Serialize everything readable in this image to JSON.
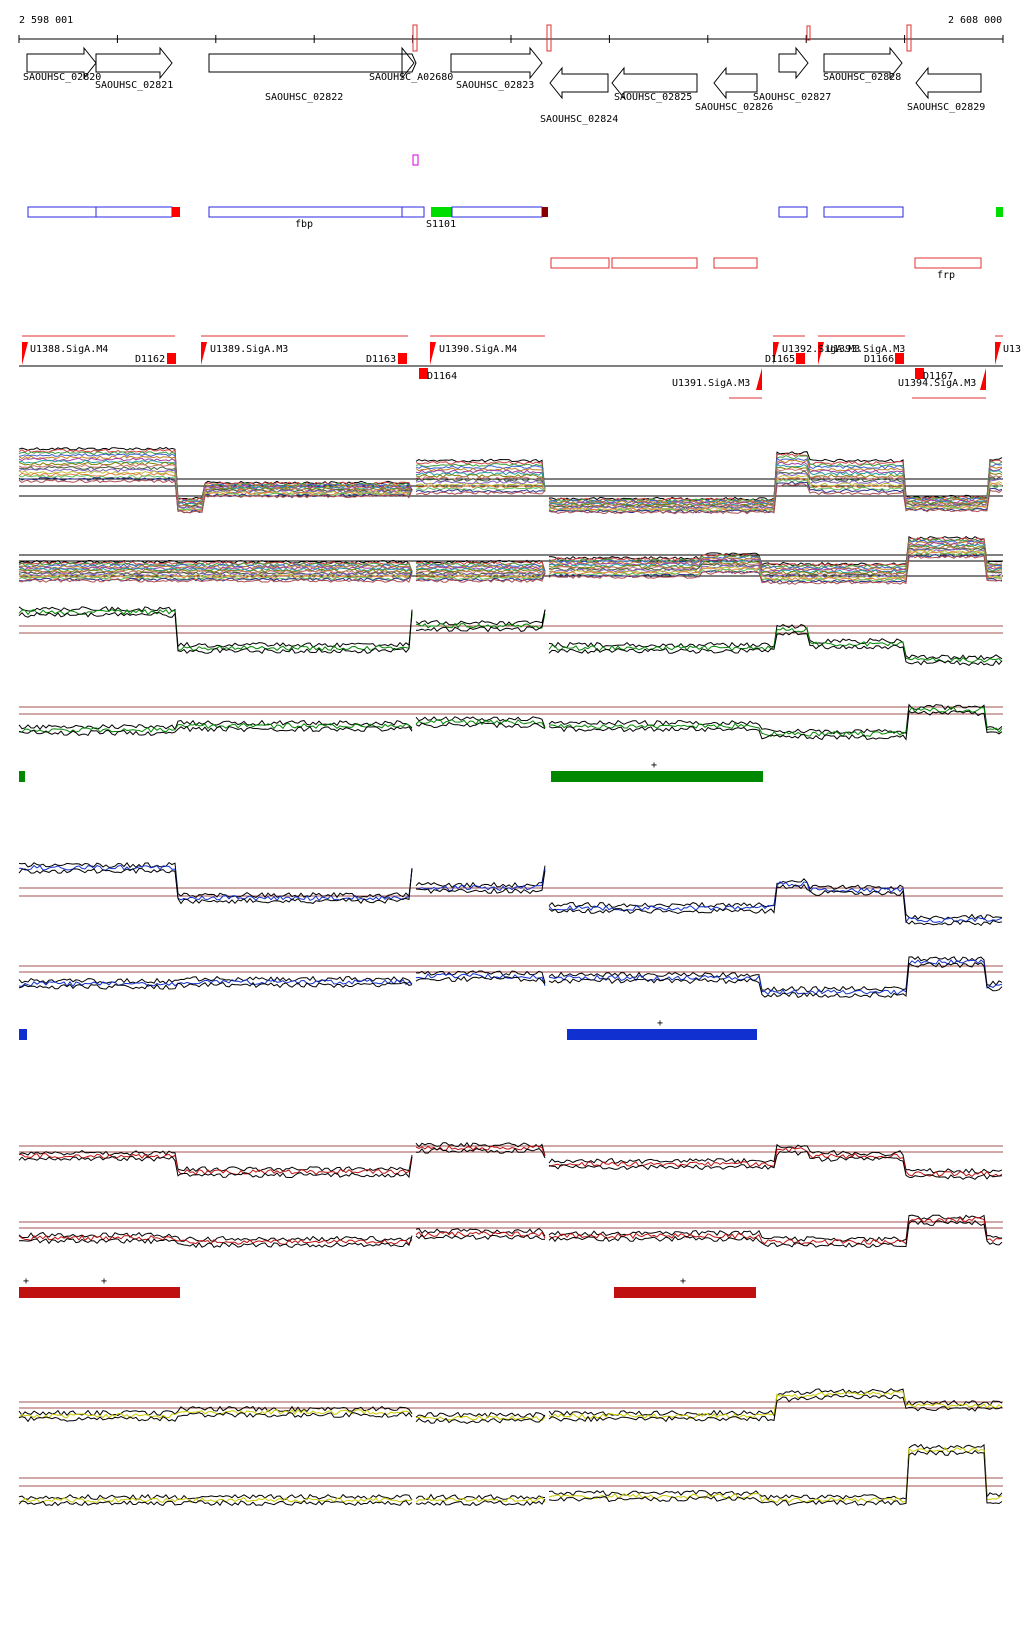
{
  "header": {
    "start_coord": "2 598 001",
    "end_coord": "2 608 000"
  },
  "genes": [
    {
      "label": "SAOUHSC_02820",
      "dir": "fwd"
    },
    {
      "label": "SAOUHSC_02821",
      "dir": "fwd"
    },
    {
      "label": "SAOUHSC_02822",
      "dir": "fwd"
    },
    {
      "label": "SAOUHSC_A02680",
      "dir": "fwd"
    },
    {
      "label": "SAOUHSC_02823",
      "dir": "fwd"
    },
    {
      "label": "SAOUHSC_02824",
      "dir": "rev"
    },
    {
      "label": "SAOUHSC_02825",
      "dir": "rev"
    },
    {
      "label": "SAOUHSC_02826",
      "dir": "rev"
    },
    {
      "label": "SAOUHSC_02827",
      "dir": "fwd"
    },
    {
      "label": "SAOUHSC_02828",
      "dir": "fwd"
    },
    {
      "label": "SAOUHSC_02829",
      "dir": "rev"
    }
  ],
  "features": {
    "fbp": "fbp",
    "s1101": "S1101",
    "frp": "frp"
  },
  "units": [
    {
      "label": "U1388.SigA.M4"
    },
    {
      "label": "U1389.SigA.M3"
    },
    {
      "label": "U1390.SigA.M4"
    },
    {
      "label": "U1391.SigA.M3"
    },
    {
      "label": "U1392.SigA.M3"
    },
    {
      "label": "U1393.SigA.M3"
    },
    {
      "label": "U1394.SigA.M3"
    },
    {
      "label": "U13"
    }
  ],
  "downshifts": [
    "D1162",
    "D1163",
    "D1164",
    "D1165",
    "D1166",
    "D1167"
  ],
  "colors": {
    "gene_outline": "#000000",
    "forward_feature": "#2a2ae0",
    "reverse_feature": "#e03030",
    "ncrna": "#00dd00",
    "marker_magenta": "#dd00dd",
    "ref_line": "#a05050",
    "green_panel": "#008800",
    "blue_panel": "#1030d0",
    "red_panel": "#c01010",
    "yellow_panel": "#cccc00"
  },
  "panels": [
    {
      "name": "green",
      "star": "+"
    },
    {
      "name": "blue",
      "star": "+"
    },
    {
      "name": "red",
      "star": "+"
    },
    {
      "name": "yellow"
    }
  ]
}
